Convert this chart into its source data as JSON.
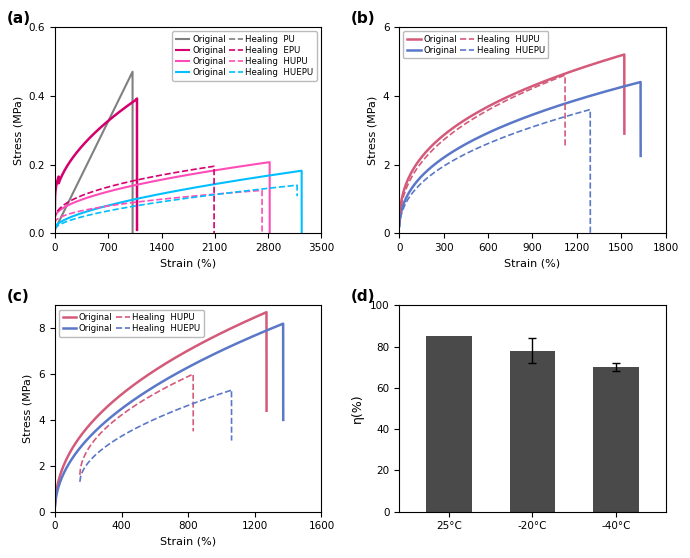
{
  "fig_width": 6.9,
  "fig_height": 5.58,
  "background_color": "#ffffff",
  "panel_a": {
    "title": "(a)",
    "xlabel": "Strain (%)",
    "ylabel": "Stress (MPa)",
    "xlim": [
      0,
      3500
    ],
    "ylim": [
      0,
      0.6
    ],
    "xticks": [
      0,
      700,
      1400,
      2100,
      2800,
      3500
    ],
    "yticks": [
      0.0,
      0.2,
      0.4,
      0.6
    ]
  },
  "panel_b": {
    "title": "(b)",
    "xlabel": "Strain (%)",
    "ylabel": "Stress (MPa)",
    "xlim": [
      0,
      1800
    ],
    "ylim": [
      0,
      6
    ],
    "xticks": [
      0,
      300,
      600,
      900,
      1200,
      1500,
      1800
    ],
    "yticks": [
      0,
      2,
      4,
      6
    ]
  },
  "panel_c": {
    "title": "(c)",
    "xlabel": "Strain (%)",
    "ylabel": "Stress (MPa)",
    "xlim": [
      0,
      1600
    ],
    "ylim": [
      0,
      9
    ],
    "xticks": [
      0,
      400,
      800,
      1200,
      1600
    ],
    "yticks": [
      0,
      2,
      4,
      6,
      8
    ]
  },
  "panel_d": {
    "title": "(d)",
    "ylabel": "η(%)",
    "ylim": [
      0,
      100
    ],
    "yticks": [
      0,
      20,
      40,
      60,
      80,
      100
    ],
    "categories": [
      "25°C",
      "-20°C",
      "-40°C"
    ],
    "values": [
      85,
      78,
      70
    ],
    "errors": [
      0,
      6,
      2
    ],
    "bar_color": "#4a4a4a",
    "bar_width": 0.55
  },
  "colors": {
    "PU": "#808080",
    "EPU": "#d4006e",
    "HUPU_a": "#ff4db8",
    "HUEPU_a": "#00bfff",
    "HUPU": "#d45a7a",
    "HUEPU": "#5b78c8"
  }
}
